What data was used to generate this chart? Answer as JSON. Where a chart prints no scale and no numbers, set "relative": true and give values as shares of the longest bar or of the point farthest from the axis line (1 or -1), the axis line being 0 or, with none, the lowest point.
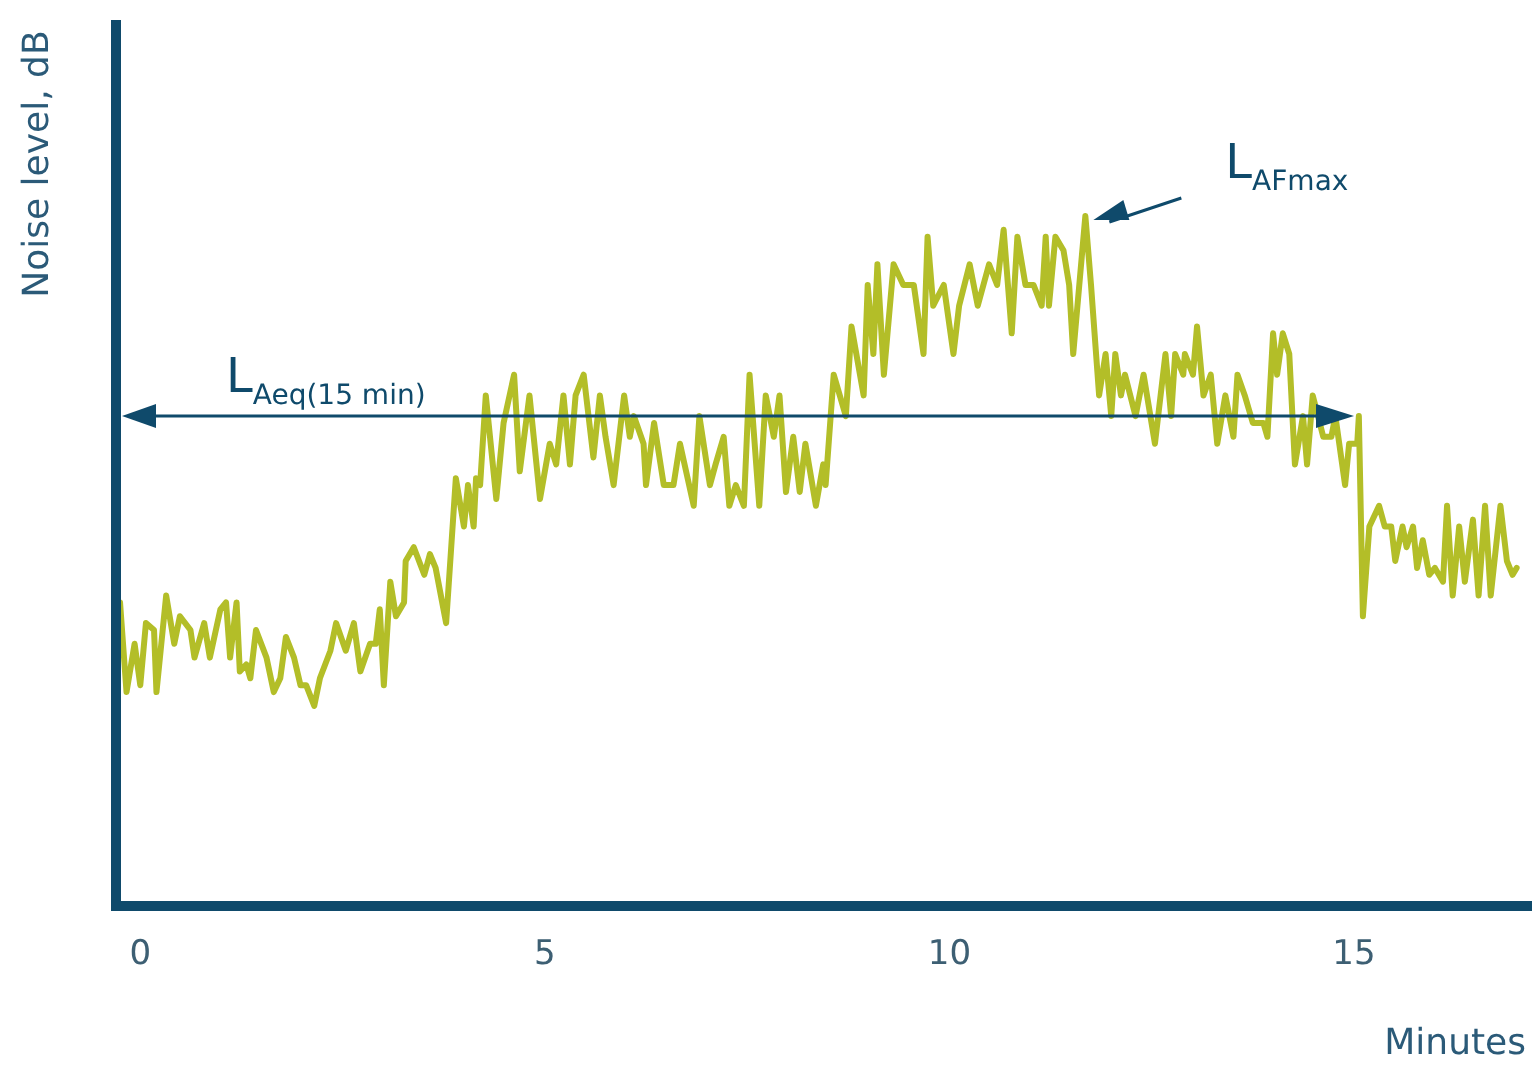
{
  "chart_data": {
    "type": "line",
    "relative": true,
    "xlabel": "Minutes",
    "ylabel": "Noise level, dB",
    "xlim": [
      -0.3,
      17.2
    ],
    "xticks": [
      0,
      5,
      10,
      15
    ],
    "grid": false,
    "line_style": "solid",
    "ref_lines": [
      {
        "axis": "y",
        "value": 0.71,
        "label": "L$_{Aeq(15 min)}$",
        "color": "#0f4a6b"
      }
    ],
    "annotations": [
      {
        "text": "L$_{AFmax}$",
        "x": 11.68,
        "y": 1.0
      }
    ],
    "series": [
      {
        "color": "#b3be28",
        "x": [
          -0.25,
          -0.17,
          -0.07,
          0.0,
          0.07,
          0.17,
          0.2,
          0.32,
          0.42,
          0.49,
          0.62,
          0.67,
          0.79,
          0.86,
          0.99,
          1.06,
          1.11,
          1.19,
          1.23,
          1.31,
          1.36,
          1.43,
          1.56,
          1.65,
          1.73,
          1.8,
          1.9,
          1.98,
          2.05,
          2.15,
          2.22,
          2.35,
          2.42,
          2.54,
          2.64,
          2.72,
          2.84,
          2.91,
          2.96,
          3.01,
          3.09,
          3.16,
          3.26,
          3.28,
          3.38,
          3.51,
          3.58,
          3.65,
          3.78,
          3.9,
          4.0,
          4.05,
          4.12,
          4.15,
          4.2,
          4.27,
          4.4,
          4.49,
          4.62,
          4.69,
          4.81,
          4.94,
          5.06,
          5.14,
          5.23,
          5.31,
          5.38,
          5.48,
          5.6,
          5.68,
          5.75,
          5.85,
          5.98,
          6.05,
          6.1,
          6.22,
          6.25,
          6.35,
          6.47,
          6.59,
          6.67,
          6.84,
          6.91,
          7.04,
          7.11,
          7.21,
          7.28,
          7.36,
          7.46,
          7.53,
          7.65,
          7.73,
          7.83,
          7.9,
          7.98,
          8.07,
          8.15,
          8.22,
          8.35,
          8.44,
          8.47,
          8.57,
          8.72,
          8.79,
          8.94,
          8.99,
          9.06,
          9.11,
          9.19,
          9.31,
          9.43,
          9.56,
          9.68,
          9.73,
          9.8,
          9.93,
          10.05,
          10.12,
          10.25,
          10.35,
          10.49,
          10.59,
          10.67,
          10.77,
          10.84,
          10.94,
          11.04,
          11.14,
          11.19,
          11.23,
          11.31,
          11.41,
          11.48,
          11.53,
          11.68,
          11.75,
          11.85,
          11.93,
          12.0,
          12.05,
          12.12,
          12.17,
          12.3,
          12.4,
          12.54,
          12.67,
          12.74,
          12.79,
          12.89,
          12.91,
          13.01,
          13.06,
          13.14,
          13.23,
          13.31,
          13.41,
          13.51,
          13.56,
          13.65,
          13.75,
          13.88,
          13.93,
          14.0,
          14.05,
          14.12,
          14.2,
          14.27,
          14.37,
          14.42,
          14.49,
          14.62,
          14.72,
          14.77,
          14.89,
          14.94,
          15.04,
          15.06,
          15.11,
          15.19,
          15.31,
          15.38,
          15.46,
          15.51,
          15.6,
          15.65,
          15.73,
          15.78,
          15.85,
          15.93,
          16.0,
          16.1,
          16.15,
          16.22,
          16.3,
          16.37,
          16.47,
          16.54,
          16.62,
          16.69,
          16.81,
          16.89,
          16.96,
          17.01
        ],
        "values": [
          0.44,
          0.31,
          0.38,
          0.32,
          0.41,
          0.4,
          0.31,
          0.45,
          0.38,
          0.42,
          0.4,
          0.36,
          0.41,
          0.36,
          0.43,
          0.44,
          0.36,
          0.44,
          0.34,
          0.35,
          0.33,
          0.4,
          0.36,
          0.31,
          0.33,
          0.39,
          0.36,
          0.32,
          0.32,
          0.29,
          0.33,
          0.37,
          0.41,
          0.37,
          0.41,
          0.34,
          0.38,
          0.38,
          0.43,
          0.32,
          0.47,
          0.42,
          0.44,
          0.5,
          0.52,
          0.48,
          0.51,
          0.49,
          0.41,
          0.62,
          0.55,
          0.61,
          0.55,
          0.62,
          0.61,
          0.74,
          0.59,
          0.7,
          0.77,
          0.63,
          0.74,
          0.59,
          0.67,
          0.64,
          0.74,
          0.64,
          0.74,
          0.77,
          0.65,
          0.74,
          0.68,
          0.61,
          0.74,
          0.68,
          0.71,
          0.67,
          0.61,
          0.7,
          0.61,
          0.61,
          0.67,
          0.58,
          0.71,
          0.61,
          0.64,
          0.68,
          0.58,
          0.61,
          0.58,
          0.77,
          0.58,
          0.74,
          0.68,
          0.74,
          0.6,
          0.68,
          0.6,
          0.67,
          0.58,
          0.64,
          0.61,
          0.77,
          0.71,
          0.84,
          0.74,
          0.9,
          0.8,
          0.93,
          0.77,
          0.93,
          0.9,
          0.9,
          0.8,
          0.97,
          0.87,
          0.9,
          0.8,
          0.87,
          0.93,
          0.87,
          0.93,
          0.9,
          0.98,
          0.83,
          0.97,
          0.9,
          0.9,
          0.87,
          0.97,
          0.87,
          0.97,
          0.95,
          0.9,
          0.8,
          1.0,
          0.9,
          0.74,
          0.8,
          0.71,
          0.8,
          0.74,
          0.77,
          0.71,
          0.77,
          0.67,
          0.8,
          0.71,
          0.8,
          0.77,
          0.8,
          0.77,
          0.84,
          0.74,
          0.77,
          0.67,
          0.74,
          0.68,
          0.77,
          0.74,
          0.7,
          0.7,
          0.68,
          0.83,
          0.77,
          0.83,
          0.8,
          0.64,
          0.71,
          0.64,
          0.74,
          0.68,
          0.68,
          0.71,
          0.61,
          0.67,
          0.67,
          0.71,
          0.42,
          0.55,
          0.58,
          0.55,
          0.55,
          0.5,
          0.55,
          0.52,
          0.55,
          0.49,
          0.53,
          0.48,
          0.49,
          0.47,
          0.58,
          0.45,
          0.55,
          0.47,
          0.56,
          0.45,
          0.58,
          0.45,
          0.58,
          0.5,
          0.48,
          0.49
        ]
      }
    ]
  }
}
